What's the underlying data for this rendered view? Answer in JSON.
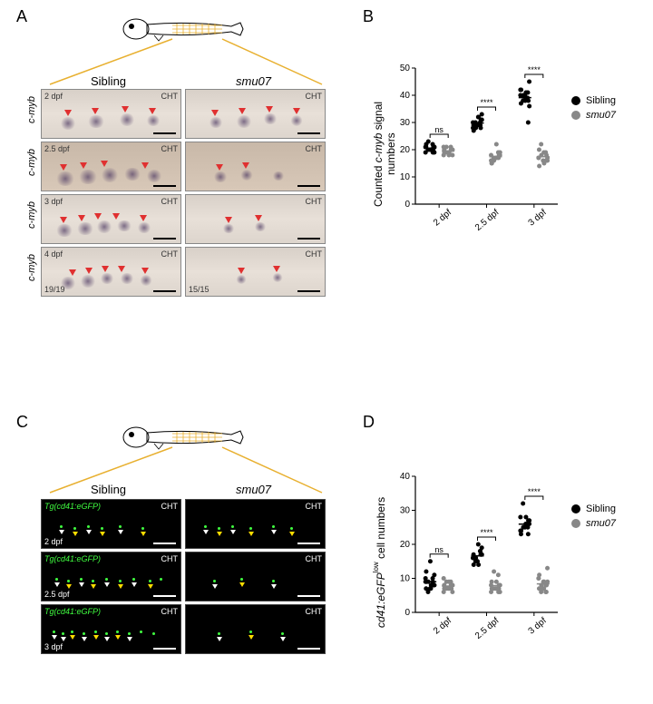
{
  "panels": {
    "A": "A",
    "B": "B",
    "C": "C",
    "D": "D"
  },
  "columns": {
    "sibling": "Sibling",
    "mutant": "smu07"
  },
  "region": "CHT",
  "gene_A": "c-myb",
  "transgene_C": "Tg(cd41:eGFP)",
  "timepoints_A": [
    "2 dpf",
    "2.5 dpf",
    "3 dpf",
    "4 dpf"
  ],
  "timepoints_C": [
    "2 dpf",
    "2.5 dpf",
    "3 dpf"
  ],
  "counts_4dpf": {
    "sibling": "19/19",
    "mutant": "15/15"
  },
  "chartB": {
    "type": "scatter-jitter",
    "ylabel": "Counted c-myb signal numbers",
    "ylabel_italic_part": "c-myb",
    "ylim": [
      0,
      50
    ],
    "yticks": [
      0,
      10,
      20,
      30,
      40,
      50
    ],
    "categories": [
      "2 dpf",
      "2.5 dpf",
      "3 dpf"
    ],
    "series": [
      {
        "name": "Sibling",
        "color": "#000000",
        "values": [
          [
            20,
            21,
            19,
            22,
            20,
            21,
            19,
            23,
            20,
            21,
            22,
            20,
            19,
            21,
            20
          ],
          [
            29,
            31,
            28,
            30,
            32,
            29,
            33,
            28,
            30,
            31,
            27,
            32,
            29,
            30,
            28
          ],
          [
            40,
            38,
            42,
            39,
            41,
            37,
            45,
            40,
            38,
            36,
            42,
            39,
            41,
            40,
            30,
            38
          ]
        ]
      },
      {
        "name": "smu07",
        "color": "#888888",
        "values": [
          [
            19,
            20,
            18,
            21,
            19,
            20,
            18,
            21,
            19,
            20,
            19,
            18,
            20,
            21
          ],
          [
            17,
            18,
            16,
            19,
            17,
            15,
            18,
            16,
            17,
            19,
            15,
            22,
            17,
            18
          ],
          [
            16,
            18,
            17,
            19,
            15,
            20,
            16,
            18,
            22,
            17,
            14,
            19,
            16,
            17
          ]
        ]
      }
    ],
    "sig": [
      "ns",
      "****",
      "****"
    ],
    "bg": "#ffffff",
    "axis_color": "#000000"
  },
  "chartD": {
    "type": "scatter-jitter",
    "ylabel": "cd41:eGFPlow cell numbers",
    "ylabel_italic_part": "cd41:eGFP",
    "ylim": [
      0,
      40
    ],
    "yticks": [
      0,
      10,
      20,
      30,
      40
    ],
    "categories": [
      "2 dpf",
      "2.5 dpf",
      "3 dpf"
    ],
    "series": [
      {
        "name": "Sibling",
        "color": "#000000",
        "values": [
          [
            7,
            8,
            9,
            10,
            8,
            7,
            11,
            9,
            6,
            8,
            12,
            7,
            9,
            10,
            8,
            15,
            9
          ],
          [
            15,
            17,
            16,
            18,
            14,
            17,
            19,
            16,
            15,
            17,
            14,
            20,
            18,
            16,
            17
          ],
          [
            25,
            27,
            24,
            26,
            28,
            23,
            26,
            25,
            32,
            27,
            24,
            26,
            25,
            28,
            23
          ]
        ]
      },
      {
        "name": "smu07",
        "color": "#888888",
        "values": [
          [
            7,
            8,
            6,
            9,
            7,
            8,
            6,
            9,
            7,
            8,
            7,
            9,
            8,
            10,
            7
          ],
          [
            7,
            8,
            6,
            11,
            7,
            9,
            6,
            12,
            7,
            8,
            7,
            9,
            6,
            8,
            7
          ],
          [
            7,
            8,
            10,
            6,
            9,
            7,
            13,
            8,
            6,
            9,
            11,
            7,
            8,
            10,
            6,
            9
          ]
        ]
      }
    ],
    "sig": [
      "ns",
      "****",
      "****"
    ],
    "bg": "#ffffff",
    "axis_color": "#000000"
  },
  "legend_items": [
    {
      "label": "Sibling",
      "color": "#000000",
      "style": "normal"
    },
    {
      "label": "smu07",
      "color": "#888888",
      "style": "italic"
    }
  ],
  "colors": {
    "arrow_red": "#e03030",
    "arrow_yellow": "#ffdd00",
    "gfp": "#40ff40",
    "zoom_line": "#e8b030"
  }
}
